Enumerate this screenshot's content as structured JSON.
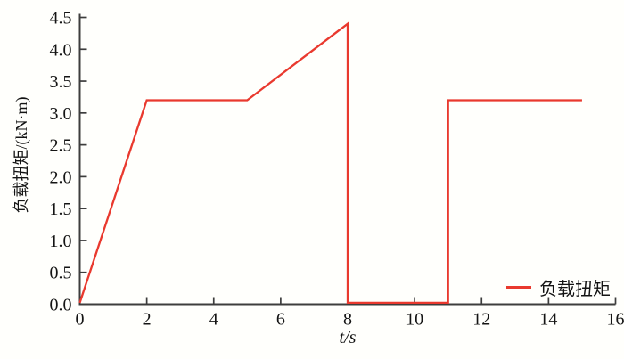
{
  "chart_data": {
    "type": "line",
    "title": "",
    "xlabel": "t/s",
    "ylabel": "负载扭矩/(kN·m)",
    "xlim": [
      0,
      16
    ],
    "ylim": [
      0,
      4.5
    ],
    "xticks": [
      "0",
      "2",
      "4",
      "6",
      "8",
      "10",
      "12",
      "14",
      "16"
    ],
    "yticks": [
      "0.0",
      "0.5",
      "1.0",
      "1.5",
      "2.0",
      "2.5",
      "3.0",
      "3.5",
      "4.0",
      "4.5"
    ],
    "grid": false,
    "legend_position": "lower right",
    "axis_color": "#3d3d3d",
    "text_color": "#141414",
    "series": [
      {
        "name": "负载扭矩",
        "color": "#e9392e",
        "points": [
          [
            0,
            0
          ],
          [
            2,
            3.2
          ],
          [
            5,
            3.2
          ],
          [
            8,
            4.4
          ],
          [
            8,
            0
          ],
          [
            11,
            0
          ],
          [
            11,
            3.2
          ],
          [
            15,
            3.2
          ]
        ]
      }
    ]
  }
}
